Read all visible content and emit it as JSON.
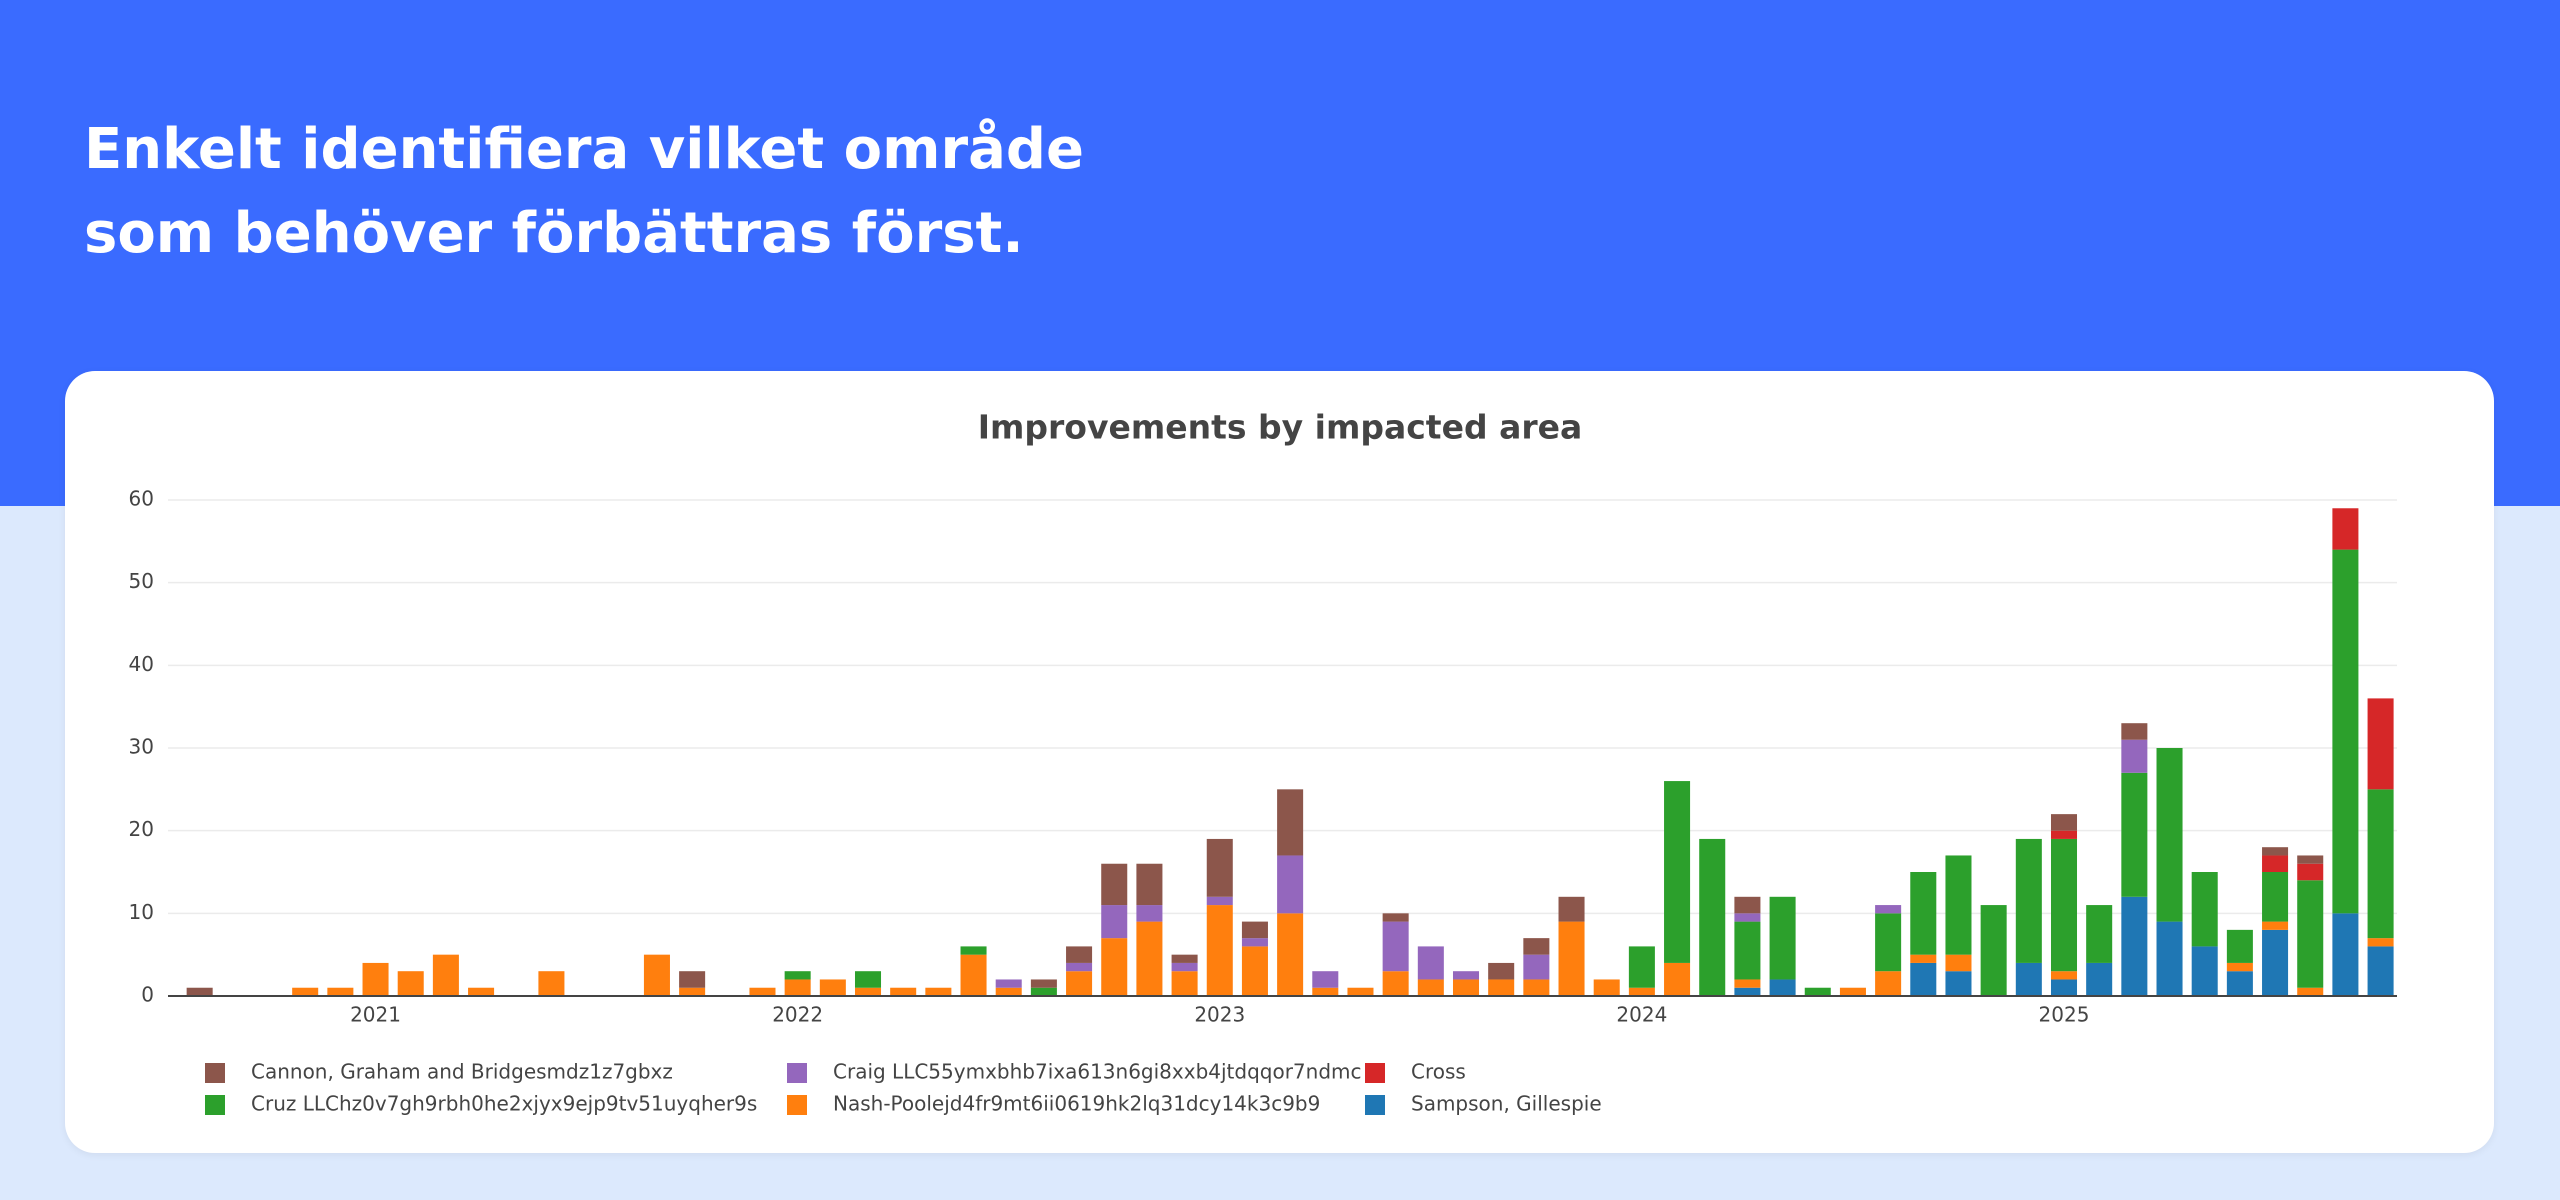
{
  "header": {
    "title_lines": [
      "Enkelt identifiera vilket område",
      "som behöver förbättras först."
    ]
  },
  "chart_data": {
    "type": "bar",
    "stacked": true,
    "title": "Improvements by impacted area",
    "x": [
      "2020-08",
      "2020-09",
      "2020-10",
      "2020-11",
      "2020-12",
      "2021-01",
      "2021-02",
      "2021-03",
      "2021-04",
      "2021-05",
      "2021-06",
      "2021-07",
      "2021-08",
      "2021-09",
      "2021-10",
      "2021-11",
      "2021-12",
      "2022-01",
      "2022-02",
      "2022-03",
      "2022-04",
      "2022-05",
      "2022-06",
      "2022-07",
      "2022-08",
      "2022-09",
      "2022-10",
      "2022-11",
      "2022-12",
      "2023-01",
      "2023-02",
      "2023-03",
      "2023-04",
      "2023-05",
      "2023-06",
      "2023-07",
      "2023-08",
      "2023-09",
      "2023-10",
      "2023-11",
      "2023-12",
      "2024-01",
      "2024-02",
      "2024-03",
      "2024-04",
      "2024-05",
      "2024-06",
      "2024-07",
      "2024-08",
      "2024-09",
      "2024-10",
      "2024-11",
      "2024-12",
      "2025-01",
      "2025-02",
      "2025-03",
      "2025-04",
      "2025-05",
      "2025-06",
      "2025-07",
      "2025-08",
      "2025-09",
      "2025-10"
    ],
    "xlim": [
      "2020-07-04",
      "2025-10-15"
    ],
    "xticks": [
      {
        "value": "2021-01",
        "label": "2021"
      },
      {
        "value": "2022-01",
        "label": "2022"
      },
      {
        "value": "2023-01",
        "label": "2023"
      },
      {
        "value": "2024-01",
        "label": "2024"
      },
      {
        "value": "2025-01",
        "label": "2025"
      }
    ],
    "ylim": [
      0,
      60
    ],
    "yticks": [
      0,
      10,
      20,
      30,
      40,
      50,
      60
    ],
    "grid": true,
    "legend": "bottom",
    "series": [
      {
        "name": "Cannon, Graham and Bridgesmdz1z7gbxz",
        "color": "#8c564b",
        "values": [
          1,
          0,
          0,
          0,
          0,
          0,
          0,
          0,
          0,
          0,
          0,
          0,
          0,
          0,
          2,
          0,
          0,
          0,
          0,
          0,
          0,
          0,
          0,
          0,
          1,
          2,
          5,
          5,
          1,
          7,
          2,
          8,
          0,
          0,
          1,
          0,
          0,
          2,
          2,
          3,
          0,
          0,
          0,
          0,
          2,
          0,
          0,
          0,
          0,
          0,
          0,
          0,
          0,
          2,
          0,
          2,
          0,
          0,
          0,
          1,
          1,
          0,
          0
        ]
      },
      {
        "name": "Craig LLC55ymxbhb7ixa613n6gi8xxb4jtdqqor7ndmc",
        "color": "#9467bd",
        "values": [
          0,
          0,
          0,
          0,
          0,
          0,
          0,
          0,
          0,
          0,
          0,
          0,
          0,
          0,
          0,
          0,
          0,
          0,
          0,
          0,
          0,
          0,
          0,
          1,
          0,
          1,
          4,
          2,
          1,
          1,
          1,
          7,
          2,
          0,
          6,
          4,
          1,
          0,
          3,
          0,
          0,
          0,
          0,
          0,
          1,
          0,
          0,
          0,
          1,
          0,
          0,
          0,
          0,
          0,
          0,
          4,
          0,
          0,
          0,
          0,
          0,
          0,
          0
        ]
      },
      {
        "name": "Cross",
        "color": "#d62728",
        "values": [
          0,
          0,
          0,
          0,
          0,
          0,
          0,
          0,
          0,
          0,
          0,
          0,
          0,
          0,
          0,
          0,
          0,
          0,
          0,
          0,
          0,
          0,
          0,
          0,
          0,
          0,
          0,
          0,
          0,
          0,
          0,
          0,
          0,
          0,
          0,
          0,
          0,
          0,
          0,
          0,
          0,
          0,
          0,
          0,
          0,
          0,
          0,
          0,
          0,
          0,
          0,
          0,
          0,
          1,
          0,
          0,
          0,
          0,
          0,
          2,
          2,
          5,
          11
        ]
      },
      {
        "name": "Cruz LLChz0v7gh9rbh0he2xjyx9ejp9tv51uyqher9s",
        "color": "#2ca02c",
        "values": [
          0,
          0,
          0,
          0,
          0,
          0,
          0,
          0,
          0,
          0,
          0,
          0,
          0,
          0,
          0,
          0,
          0,
          1,
          0,
          2,
          0,
          0,
          1,
          0,
          1,
          0,
          0,
          0,
          0,
          0,
          0,
          0,
          0,
          0,
          0,
          0,
          0,
          0,
          0,
          0,
          0,
          5,
          22,
          19,
          7,
          10,
          1,
          0,
          7,
          10,
          12,
          11,
          15,
          16,
          7,
          15,
          21,
          9,
          4,
          6,
          13,
          44,
          18
        ]
      },
      {
        "name": "Nash-Poolejd4fr9mt6ii0619hk2lq31dcy14k3c9b9",
        "color": "#ff7f0e",
        "values": [
          0,
          0,
          0,
          1,
          1,
          4,
          3,
          5,
          1,
          0,
          3,
          0,
          0,
          5,
          1,
          0,
          1,
          2,
          2,
          1,
          1,
          1,
          5,
          1,
          0,
          3,
          7,
          9,
          3,
          11,
          6,
          10,
          1,
          1,
          3,
          2,
          2,
          2,
          2,
          9,
          2,
          1,
          4,
          0,
          1,
          0,
          0,
          1,
          3,
          1,
          2,
          0,
          0,
          1,
          0,
          0,
          0,
          0,
          1,
          1,
          1,
          0,
          1
        ]
      },
      {
        "name": "Sampson, Gillespie",
        "color": "#1f77b4",
        "values": [
          0,
          0,
          0,
          0,
          0,
          0,
          0,
          0,
          0,
          0,
          0,
          0,
          0,
          0,
          0,
          0,
          0,
          0,
          0,
          0,
          0,
          0,
          0,
          0,
          0,
          0,
          0,
          0,
          0,
          0,
          0,
          0,
          0,
          0,
          0,
          0,
          0,
          0,
          0,
          0,
          0,
          0,
          0,
          0,
          1,
          2,
          0,
          0,
          0,
          4,
          3,
          0,
          4,
          2,
          4,
          12,
          9,
          6,
          3,
          8,
          0,
          10,
          6
        ]
      }
    ]
  }
}
